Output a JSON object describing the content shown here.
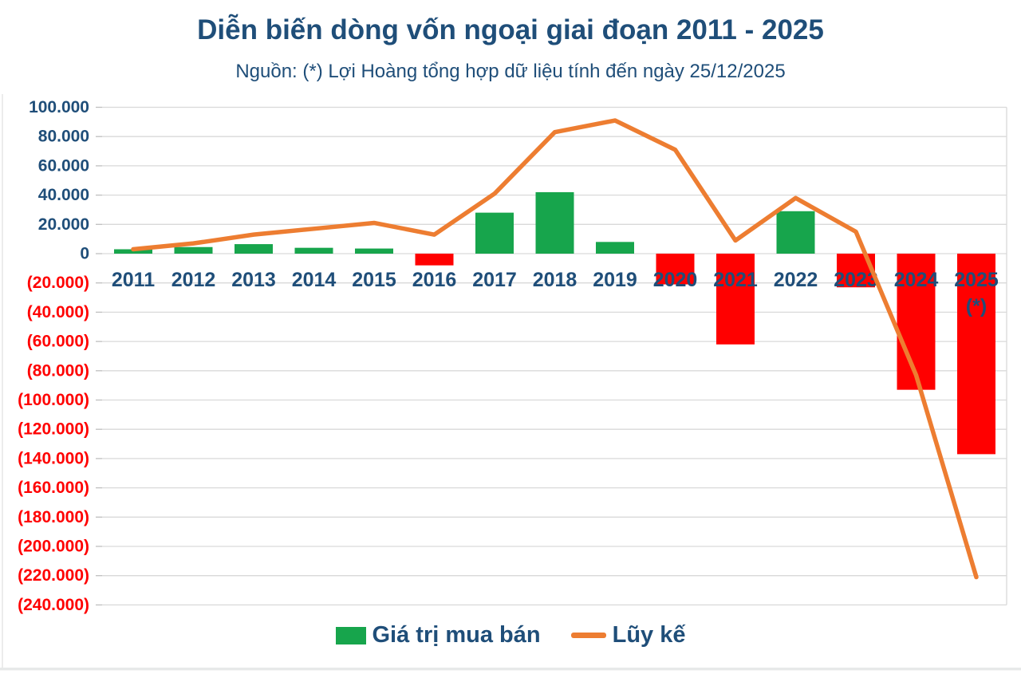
{
  "header": {
    "title": "Diễn biến dòng vốn ngoại giai đoạn 2011 - 2025",
    "subtitle": "Nguồn: (*) Lợi Hoàng tổng hợp dữ liệu tính đến ngày 25/12/2025"
  },
  "legend": {
    "bar_label": "Giá trị mua bán",
    "line_label": "Lũy kế"
  },
  "colors": {
    "title_text": "#1F4E79",
    "positive_bar": "#17A54C",
    "negative_bar": "#FF0000",
    "line": "#ED7D31",
    "axis_label_positive": "#1F4E79",
    "axis_label_negative": "#FF0000",
    "year_label": "#1F4E79",
    "gridline": "#D9D9D9",
    "tick": "#BFBFBF"
  },
  "chart_data": {
    "type": "bar+line combo",
    "categories": [
      "2011",
      "2012",
      "2013",
      "2014",
      "2015",
      "2016",
      "2017",
      "2018",
      "2019",
      "2020",
      "2021",
      "2022",
      "2023",
      "2024",
      "2025"
    ],
    "x_note": {
      "index": 14,
      "text": "(*)"
    },
    "series": [
      {
        "name": "Giá trị mua bán",
        "type": "bar",
        "values": [
          3000,
          4500,
          6500,
          4000,
          3500,
          -8000,
          28000,
          42000,
          8000,
          -21000,
          -62000,
          29000,
          -23000,
          -93000,
          -137000
        ]
      },
      {
        "name": "Lũy kế",
        "type": "line",
        "values": [
          3000,
          7000,
          13000,
          17000,
          21000,
          13000,
          41000,
          83000,
          91000,
          71000,
          9000,
          38000,
          15000,
          -83000,
          -221000
        ]
      }
    ],
    "ylim": [
      -240000,
      100000
    ],
    "ytick_step": 20000,
    "ytick_labels": [
      "100.000",
      "80.000",
      "60.000",
      "40.000",
      "20.000",
      "0",
      "(20.000)",
      "(40.000)",
      "(60.000)",
      "(80.000)",
      "(100.000)",
      "(120.000)",
      "(140.000)",
      "(160.000)",
      "(180.000)",
      "(200.000)",
      "(220.000)",
      "(240.000)"
    ],
    "grid": true,
    "legend_position": "bottom"
  }
}
